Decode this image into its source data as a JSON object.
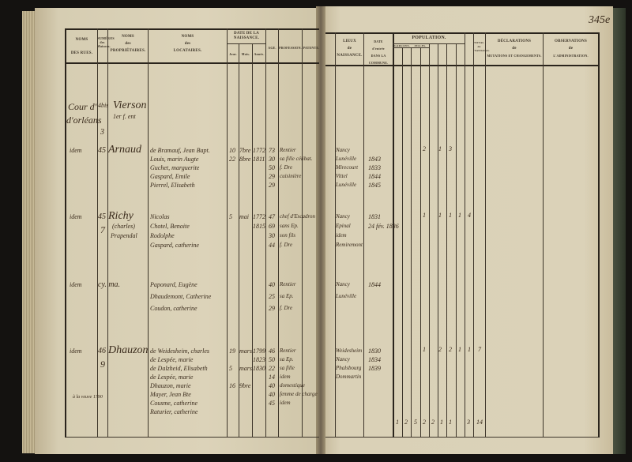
{
  "page_number": "345e",
  "left_headers": {
    "rue": [
      "NOMS",
      "DES RUES."
    ],
    "numeros": [
      "NUMÉROS",
      "des Maisons."
    ],
    "proprietaires": [
      "NOMS",
      "des",
      "PROPRIÉTAIRES."
    ],
    "locataires": [
      "NOMS",
      "des",
      "LOCATAIRES."
    ],
    "date": "DATE DE LA NAISSANCE.",
    "jour": "Jour.",
    "mois": "Mois.",
    "annee": "Année.",
    "age": "AGE.",
    "profession": "PROFESSION.",
    "patente": "PATENTE."
  },
  "right_headers": {
    "lieux": [
      "LIEUX",
      "de",
      "NAISSANCE."
    ],
    "date_entree": [
      "DATE",
      "d'entrée",
      "DANS LA COMMUNE."
    ],
    "population": "POPULATION.",
    "garcons": "GARÇONS.",
    "filles": "FILLES.",
    "total": "TOTAL de l'habitation.",
    "declarations": [
      "DÉCLARATIONS",
      "de",
      "MUTATIONS ET CHANGEMENTS."
    ],
    "observations": [
      "OBSERVATIONS",
      "de",
      "L'ADMINISTRATION."
    ]
  },
  "entries": [
    {
      "rue": "Cour d'",
      "rue2": "d'orléans",
      "num": "4bis",
      "num2": "3",
      "proprietaire": "Vierson",
      "prop2": "1er f. ent"
    },
    {
      "rue": "idem",
      "num": "45",
      "proprietaire": "Arnaud",
      "locataires": [
        "de Bramauf, Jean Bapt.",
        "Louis, marin Augte",
        "Guchet, marguerite",
        "Gaspard, Emile",
        "Pierrel, Elisabeth"
      ],
      "jour": [
        "10",
        "22"
      ],
      "mois": [
        "7bre",
        "8bre"
      ],
      "annee": [
        "1772",
        "1811"
      ],
      "ages": [
        "73",
        "30",
        "50",
        "29",
        "29"
      ],
      "professions": [
        "Rentier",
        "sa fille célibat.",
        "f. Dre",
        "cuisinière",
        ""
      ],
      "lieux": [
        "Nancy",
        "Lunéville",
        "Mirecourt",
        "Vittel",
        "Lunéville"
      ],
      "dates_entree": [
        "",
        "1843",
        "1833",
        "1844",
        "1845"
      ],
      "pop": [
        "2",
        "1",
        "3"
      ]
    },
    {
      "rue": "idem",
      "num": "45",
      "num2": "7",
      "proprietaire": "Richy",
      "prop2": "(charles)",
      "prop3": "Prapendal",
      "locataires": [
        "Nicolas",
        "Chotel, Benoite",
        "Rodolphe",
        "Gaspard, catherine"
      ],
      "jour": [
        "5"
      ],
      "mois": [
        "mai"
      ],
      "annee": [
        "1772",
        "1815"
      ],
      "ages": [
        "47",
        "69",
        "30",
        "44"
      ],
      "professions": [
        "chef d'Escadron",
        "sans Ep.",
        "son fils",
        "f. Dre"
      ],
      "lieux": [
        "Nancy",
        "Epinal",
        "idem",
        "Remiremont"
      ],
      "dates_entree": [
        "1831",
        "24 fév. 1836"
      ],
      "pop": [
        "1",
        "1",
        "1",
        "1",
        "4"
      ]
    },
    {
      "rue": "idem",
      "num": "cy. ma.",
      "locataires": [
        "Paponard, Eugène",
        "Dhaudemont, Catherine",
        "Coudon, catherine"
      ],
      "ages": [
        "40",
        "25",
        "29"
      ],
      "professions": [
        "Rentier",
        "sa Ep.",
        "f. Dre"
      ],
      "lieux": [
        "Nancy",
        "Lunéville"
      ],
      "dates_entree": [
        "1844"
      ]
    },
    {
      "rue": "idem",
      "num": "46",
      "num2": "9",
      "proprietaire": "Dhauzon",
      "prop_note": "à la veuve 1790",
      "locataires": [
        "de Weidesheim, charles",
        "de Lespée, marie",
        "de Dalzheid, Elisabeth",
        "de Lespée, marie",
        "Dhauzon, marie",
        "Mayer, Jean Bte",
        "Cousme, catherine",
        "Raturier, catherine"
      ],
      "jour": [
        "19",
        "5",
        "16"
      ],
      "mois": [
        "mars",
        "mars",
        "9bre"
      ],
      "annee": [
        "1799",
        "1823",
        "1830"
      ],
      "ages": [
        "46",
        "50",
        "22",
        "14",
        "40",
        "40",
        "45"
      ],
      "professions": [
        "Rentier",
        "sa Ep.",
        "sa fille",
        "idem",
        "domestique",
        "femme de charge",
        "idem"
      ],
      "lieux": [
        "Weidesheim",
        "Nancy",
        "Phalsbourg",
        "Dommartin"
      ],
      "dates_entree": [
        "1830",
        "1834",
        "1839"
      ],
      "pop": [
        "1",
        "2",
        "2",
        "1",
        "1",
        "7"
      ]
    }
  ],
  "totals": [
    "1",
    "2",
    "5",
    "2",
    "2",
    "1",
    "1",
    "3",
    "14"
  ]
}
